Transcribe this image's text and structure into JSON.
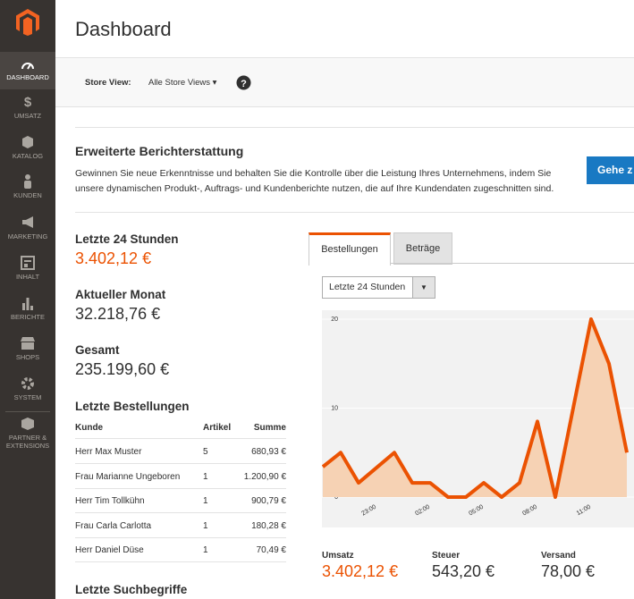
{
  "nav": {
    "items": [
      "DASHBOARD",
      "UMSATZ",
      "KATALOG",
      "KUNDEN",
      "MARKETING",
      "INHALT",
      "BERICHTE",
      "SHOPS",
      "SYSTEM",
      "PARTNER & EXTENSIONS"
    ]
  },
  "header": {
    "title": "Dashboard"
  },
  "store_view": {
    "label": "Store View:",
    "value": "Alle Store Views"
  },
  "promo": {
    "title": "Erweiterte Berichterstattung",
    "text": [
      "Gewinnen Sie neue Erkenntnisse und behalten Sie die Kontrolle über die Leistung Ihres Unternehmens, indem Sie",
      "unsere dynamischen Produkt-, Auftrags- und Kundenberichte nutzen, die auf Ihre Kundendaten zugeschnitten sind."
    ],
    "button": "Gehe z"
  },
  "stats": [
    {
      "label": "Letzte 24 Stunden",
      "value": "3.402,12 €"
    },
    {
      "label": "Aktueller Monat",
      "value": "32.218,76 €"
    },
    {
      "label": "Gesamt",
      "value": "235.199,60 €"
    }
  ],
  "orders": {
    "title": "Letzte Bestellungen",
    "columns": [
      "Kunde",
      "Artikel",
      "Summe"
    ],
    "rows": [
      [
        "Herr Max Muster",
        5,
        "680,93 €"
      ],
      [
        "Frau Marianne Ungeboren",
        1,
        "1.200,90 €"
      ],
      [
        "Herr Tim Tollkühn",
        1,
        "900,79 €"
      ],
      [
        "Frau Carla Carlotta",
        1,
        "180,28 €"
      ],
      [
        "Herr Daniel Düse",
        1,
        "70,49 €"
      ]
    ]
  },
  "search": {
    "title": "Letzte Suchbegriffe"
  },
  "tabs": [
    "Bestellungen",
    "Beträge"
  ],
  "period": "Letzte 24 Stunden",
  "chart_data": {
    "type": "line",
    "categories": [
      null,
      null,
      null,
      "23:00",
      null,
      null,
      "02:00",
      null,
      null,
      "05:00",
      null,
      null,
      "08:00",
      null,
      null,
      "11:00",
      null,
      null
    ],
    "values": [
      3.4,
      5,
      1.6,
      3.3,
      5,
      1.6,
      1.6,
      0,
      0,
      1.6,
      0,
      1.6,
      8.5,
      0,
      10,
      20,
      15,
      5
    ],
    "color": "#eb5202",
    "fill": "#f6d2b4",
    "ylim": [
      0,
      20
    ],
    "yticks": [
      0,
      10,
      20
    ],
    "grid": true
  },
  "totals": [
    {
      "label": "Umsatz",
      "value": "3.402,12 €"
    },
    {
      "label": "Steuer",
      "value": "543,20 €"
    },
    {
      "label": "Versand",
      "value": "78,00 €"
    }
  ]
}
